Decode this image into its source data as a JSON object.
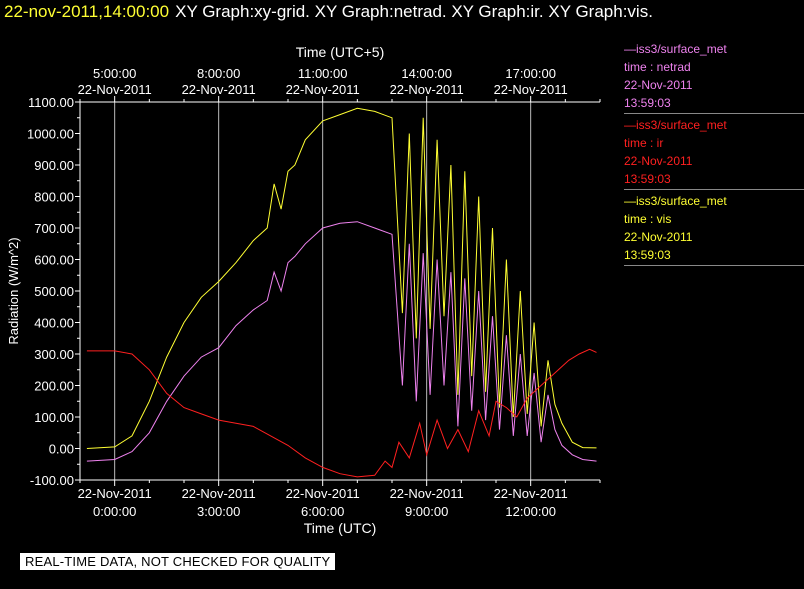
{
  "header": {
    "timestamp": "22-nov-2011,14:00:00",
    "graphs": "XY Graph:xy-grid.  XY Graph:netrad.  XY Graph:ir.  XY Graph:vis."
  },
  "legend": [
    {
      "source": "—iss3/surface_met",
      "field": "time : netrad",
      "date": "22-Nov-2011",
      "time": "13:59:03",
      "color": "#ee82ee"
    },
    {
      "source": "—iss3/surface_met",
      "field": "time : ir",
      "date": "22-Nov-2011",
      "time": "13:59:03",
      "color": "#ff2020"
    },
    {
      "source": "—iss3/surface_met",
      "field": "time : vis",
      "date": "22-Nov-2011",
      "time": "13:59:03",
      "color": "#ffff33"
    }
  ],
  "disclaimer": "REAL-TIME DATA, NOT CHECKED FOR QUALITY",
  "chart_data": {
    "type": "line",
    "title": "",
    "xlabel": "Time (UTC)",
    "x2label": "Time (UTC+5)",
    "ylabel": "Radiation (W/m^2)",
    "xlim": [
      -1,
      14
    ],
    "ylim": [
      -100,
      1100
    ],
    "yticks": [
      -100,
      0,
      100,
      200,
      300,
      400,
      500,
      600,
      700,
      800,
      900,
      1000,
      1100
    ],
    "ytick_labels": [
      "-100.00",
      "0.00",
      "100.00",
      "200.00",
      "300.00",
      "400.00",
      "500.00",
      "600.00",
      "700.00",
      "800.00",
      "900.00",
      "1000.00",
      "1100.00"
    ],
    "xticks": [
      {
        "hour": 0,
        "date": "22-Nov-2011",
        "time": "0:00:00"
      },
      {
        "hour": 3,
        "date": "22-Nov-2011",
        "time": "3:00:00"
      },
      {
        "hour": 6,
        "date": "22-Nov-2011",
        "time": "6:00:00"
      },
      {
        "hour": 9,
        "date": "22-Nov-2011",
        "time": "9:00:00"
      },
      {
        "hour": 12,
        "date": "22-Nov-2011",
        "time": "12:00:00"
      }
    ],
    "x2ticks": [
      {
        "hour": 0,
        "time": "5:00:00",
        "date": "22-Nov-2011"
      },
      {
        "hour": 3,
        "time": "8:00:00",
        "date": "22-Nov-2011"
      },
      {
        "hour": 6,
        "time": "11:00:00",
        "date": "22-Nov-2011"
      },
      {
        "hour": 9,
        "time": "14:00:00",
        "date": "22-Nov-2011"
      },
      {
        "hour": 12,
        "time": "17:00:00",
        "date": "22-Nov-2011"
      }
    ],
    "grid": true,
    "series": [
      {
        "name": "time : vis",
        "color": "#ffff33",
        "x": [
          -0.8,
          0,
          0.5,
          1.0,
          1.5,
          2.0,
          2.5,
          3.0,
          3.5,
          4.0,
          4.4,
          4.6,
          4.8,
          5.0,
          5.2,
          5.5,
          6.0,
          6.5,
          7.0,
          7.5,
          8.0,
          8.3,
          8.5,
          8.7,
          8.9,
          9.1,
          9.3,
          9.5,
          9.7,
          9.9,
          10.1,
          10.3,
          10.5,
          10.7,
          10.9,
          11.1,
          11.3,
          11.5,
          11.7,
          11.9,
          12.1,
          12.3,
          12.5,
          12.7,
          12.9,
          13.2,
          13.5,
          13.9
        ],
        "y": [
          0,
          5,
          40,
          150,
          290,
          400,
          480,
          530,
          590,
          660,
          700,
          840,
          760,
          880,
          900,
          980,
          1040,
          1060,
          1080,
          1070,
          1050,
          430,
          1000,
          350,
          1050,
          380,
          980,
          420,
          900,
          170,
          880,
          230,
          800,
          180,
          700,
          130,
          600,
          100,
          500,
          110,
          400,
          70,
          280,
          140,
          80,
          20,
          3,
          2
        ]
      },
      {
        "name": "time : netrad",
        "color": "#ee82ee",
        "x": [
          -0.8,
          0,
          0.5,
          1.0,
          1.5,
          2.0,
          2.5,
          3.0,
          3.5,
          4.0,
          4.4,
          4.6,
          4.8,
          5.0,
          5.2,
          5.5,
          6.0,
          6.5,
          7.0,
          7.5,
          8.0,
          8.3,
          8.5,
          8.7,
          8.9,
          9.1,
          9.3,
          9.5,
          9.7,
          9.9,
          10.1,
          10.3,
          10.5,
          10.7,
          10.9,
          11.1,
          11.3,
          11.5,
          11.7,
          11.9,
          12.1,
          12.3,
          12.5,
          12.7,
          12.9,
          13.2,
          13.5,
          13.9
        ],
        "y": [
          -40,
          -35,
          -10,
          50,
          150,
          230,
          290,
          320,
          390,
          440,
          470,
          560,
          500,
          590,
          610,
          650,
          700,
          715,
          720,
          700,
          680,
          200,
          650,
          150,
          620,
          170,
          600,
          200,
          560,
          70,
          540,
          120,
          500,
          90,
          420,
          60,
          360,
          40,
          300,
          40,
          240,
          20,
          170,
          60,
          10,
          -20,
          -35,
          -40
        ]
      },
      {
        "name": "time : ir",
        "color": "#ff2020",
        "x": [
          -0.8,
          0,
          0.5,
          1.0,
          1.5,
          2.0,
          2.5,
          3.0,
          3.5,
          4.0,
          4.5,
          5.0,
          5.5,
          6.0,
          6.5,
          7.0,
          7.5,
          7.8,
          8.0,
          8.2,
          8.5,
          8.8,
          9.0,
          9.3,
          9.6,
          9.9,
          10.2,
          10.5,
          10.8,
          11.0,
          11.3,
          11.6,
          11.9,
          12.2,
          12.5,
          12.8,
          13.1,
          13.4,
          13.7,
          13.9
        ],
        "y": [
          310,
          310,
          300,
          250,
          175,
          130,
          110,
          90,
          80,
          70,
          40,
          10,
          -30,
          -60,
          -80,
          -90,
          -85,
          -40,
          -60,
          20,
          -30,
          80,
          -20,
          90,
          0,
          60,
          -10,
          120,
          40,
          150,
          130,
          100,
          160,
          190,
          220,
          250,
          280,
          300,
          315,
          305
        ]
      }
    ]
  }
}
